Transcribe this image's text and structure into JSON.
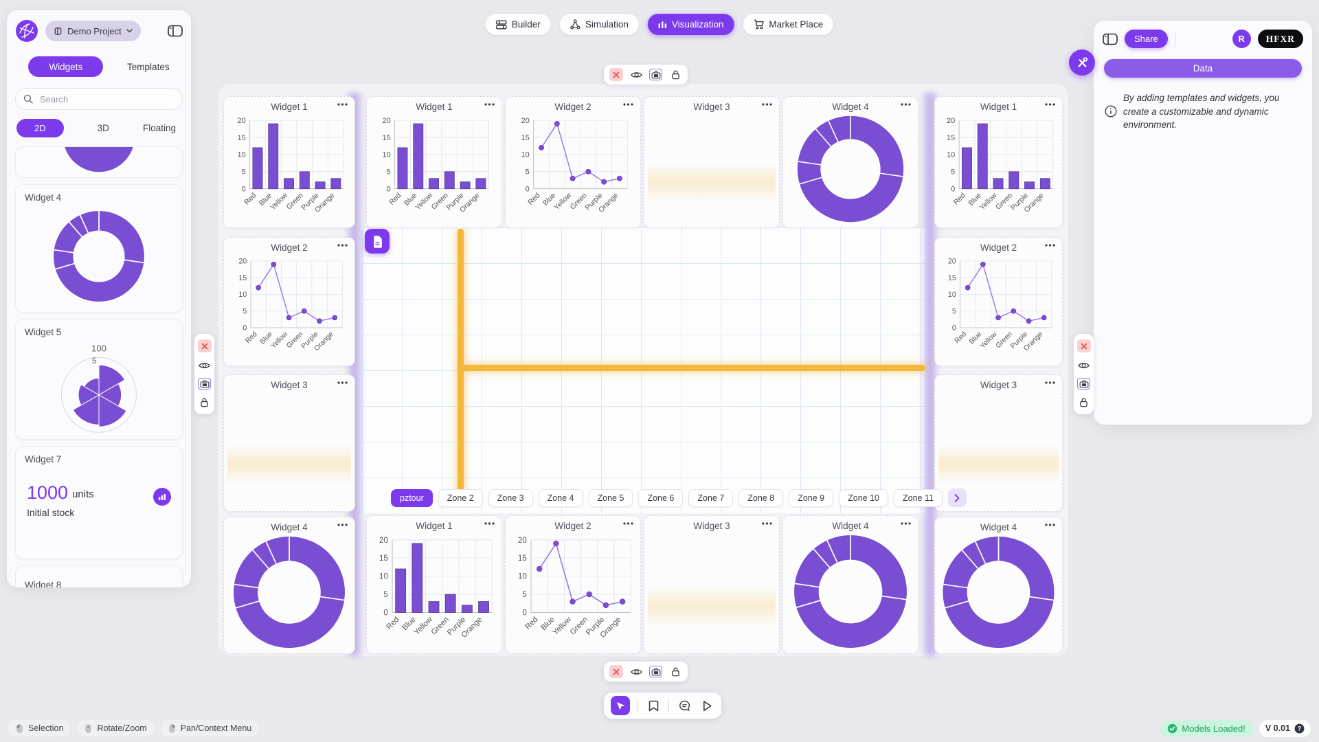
{
  "colors": {
    "accent": "#7c3aed",
    "accent_light": "#8a5ce8",
    "chart_purple": "#7a4ed2",
    "guide_yellow": "#f2b83c",
    "success_green": "#2bb673"
  },
  "top_nav": {
    "items": [
      {
        "label": "Builder",
        "icon": "builder-icon",
        "active": false
      },
      {
        "label": "Simulation",
        "icon": "simulation-icon",
        "active": false
      },
      {
        "label": "Visualization",
        "icon": "visualization-icon",
        "active": true
      },
      {
        "label": "Market Place",
        "icon": "cart-icon",
        "active": false
      }
    ]
  },
  "sidebar": {
    "project_button": "Demo Project",
    "tabs": [
      {
        "label": "Widgets",
        "active": true
      },
      {
        "label": "Templates",
        "active": false
      }
    ],
    "search_placeholder": "Search",
    "mode_tabs": [
      {
        "label": "2D",
        "active": true
      },
      {
        "label": "3D",
        "active": false
      },
      {
        "label": "Floating",
        "active": false
      }
    ],
    "cards": [
      {
        "type": "pie-partial",
        "title": ""
      },
      {
        "type": "donut",
        "title": "Widget 4"
      },
      {
        "type": "polar",
        "title": "Widget 5"
      },
      {
        "type": "stat",
        "title": "Widget 7",
        "value": "1000",
        "unit": "units",
        "caption": "Initial stock"
      },
      {
        "type": "empty",
        "title": "Widget 8"
      }
    ]
  },
  "chart_data": [
    {
      "id": "bar",
      "type": "bar",
      "title": "Widget 1",
      "categories": [
        "Red",
        "Blue",
        "Yellow",
        "Green",
        "Purple",
        "Orange"
      ],
      "values": [
        12,
        19,
        3,
        5,
        2,
        3
      ],
      "ylim": [
        0,
        20
      ],
      "yticks": [
        0,
        5,
        10,
        15,
        20
      ],
      "grid": true
    },
    {
      "id": "line",
      "type": "line",
      "title": "Widget 2",
      "categories": [
        "Red",
        "Blue",
        "Yellow",
        "Green",
        "Purple",
        "Orange"
      ],
      "values": [
        12,
        19,
        3,
        5,
        2,
        3
      ],
      "ylim": [
        0,
        20
      ],
      "yticks": [
        0,
        5,
        10,
        15,
        20
      ],
      "grid": true
    },
    {
      "id": "empty",
      "type": "none",
      "title": "Widget 3"
    },
    {
      "id": "donut",
      "type": "donut",
      "title": "Widget 4",
      "categories": [
        "Red",
        "Blue",
        "Yellow",
        "Green",
        "Purple",
        "Orange"
      ],
      "values": [
        12,
        19,
        3,
        5,
        2,
        3
      ]
    },
    {
      "id": "polar",
      "type": "polar",
      "title": "Widget 5",
      "max": 100,
      "radial_tick_labels": [
        "100",
        "5"
      ],
      "values": [
        80,
        60,
        85,
        80,
        55,
        45
      ]
    }
  ],
  "canvas": {
    "widgets": [
      {
        "slot": "L1",
        "title": "Widget 1",
        "chart": "bar"
      },
      {
        "slot": "L2",
        "title": "Widget 2",
        "chart": "line"
      },
      {
        "slot": "L3",
        "title": "Widget 3",
        "chart": "empty"
      },
      {
        "slot": "L4",
        "title": "Widget 4",
        "chart": "donut"
      },
      {
        "slot": "T1",
        "title": "Widget 1",
        "chart": "bar"
      },
      {
        "slot": "T2",
        "title": "Widget 2",
        "chart": "line"
      },
      {
        "slot": "T3",
        "title": "Widget 3",
        "chart": "empty"
      },
      {
        "slot": "T4",
        "title": "Widget 4",
        "chart": "donut"
      },
      {
        "slot": "B1",
        "title": "Widget 1",
        "chart": "bar"
      },
      {
        "slot": "B2",
        "title": "Widget 2",
        "chart": "line"
      },
      {
        "slot": "B3",
        "title": "Widget 3",
        "chart": "empty"
      },
      {
        "slot": "B4",
        "title": "Widget 4",
        "chart": "donut"
      },
      {
        "slot": "R1",
        "title": "Widget 1",
        "chart": "bar"
      },
      {
        "slot": "R2",
        "title": "Widget 2",
        "chart": "line"
      },
      {
        "slot": "R3",
        "title": "Widget 3",
        "chart": "empty"
      },
      {
        "slot": "R4",
        "title": "Widget 4",
        "chart": "donut"
      }
    ]
  },
  "zones": {
    "items": [
      {
        "label": "pztour",
        "active": true
      },
      {
        "label": "Zone 2",
        "active": false
      },
      {
        "label": "Zone 3",
        "active": false
      },
      {
        "label": "Zone 4",
        "active": false
      },
      {
        "label": "Zone 5",
        "active": false
      },
      {
        "label": "Zone 6",
        "active": false
      },
      {
        "label": "Zone 7",
        "active": false
      },
      {
        "label": "Zone 8",
        "active": false
      },
      {
        "label": "Zone 9",
        "active": false
      },
      {
        "label": "Zone 10",
        "active": false
      },
      {
        "label": "Zone 11",
        "active": false
      }
    ]
  },
  "right_panel": {
    "share_label": "Share",
    "avatar_initial": "R",
    "logo_text": "HFXR",
    "data_button_label": "Data",
    "info_text": "By adding templates and widgets, you create a customizable and dynamic environment."
  },
  "status_bar": {
    "left": [
      {
        "label": "Selection",
        "icon": "mouse-left-icon"
      },
      {
        "label": "Rotate/Zoom",
        "icon": "mouse-middle-icon"
      },
      {
        "label": "Pan/Context Menu",
        "icon": "mouse-right-icon"
      }
    ],
    "right": {
      "models_loaded": "Models Loaded!",
      "version": "V 0.01"
    }
  }
}
